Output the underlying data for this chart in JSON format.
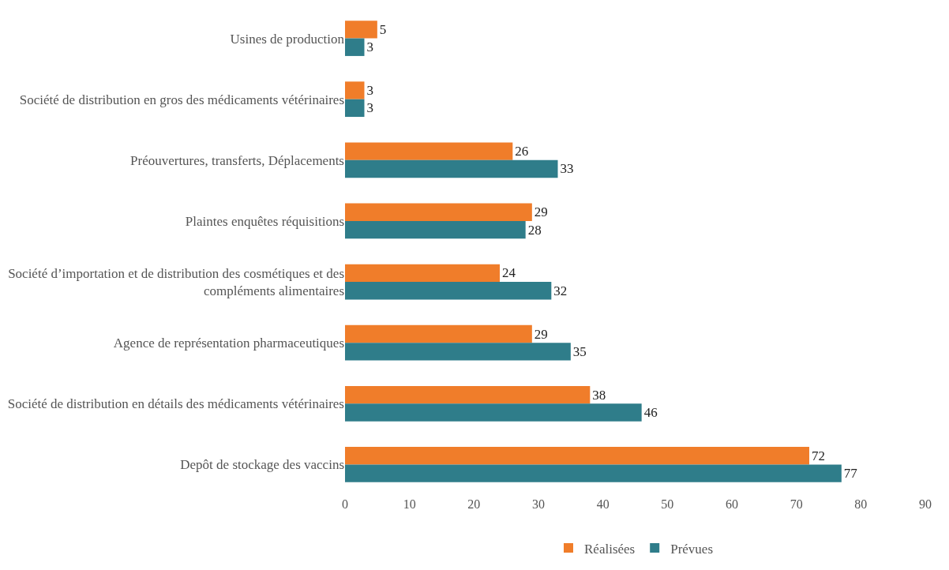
{
  "chart_data": {
    "type": "bar",
    "orientation": "horizontal",
    "categories": [
      "Usines de production",
      "Société de distribution en gros des médicaments vétérinaires",
      "Préouvertures, transferts, Déplacements",
      "Plaintes enquêtes réquisitions",
      "Société d’importation et de distribution des cosmétiques et des\ncompléments alimentaires",
      "Agence de représentation pharmaceutiques",
      "Société de distribution en détails des médicaments vétérinaires",
      "Depôt de stockage des vaccins"
    ],
    "series": [
      {
        "name": "Réalisées",
        "color": "#f07d2a",
        "values": [
          5,
          3,
          26,
          29,
          24,
          29,
          38,
          72
        ]
      },
      {
        "name": "Prévues",
        "color": "#2f7d8a",
        "values": [
          3,
          3,
          33,
          28,
          32,
          35,
          46,
          77
        ]
      }
    ],
    "xlim": [
      0,
      90
    ],
    "xticks": [
      0,
      10,
      20,
      30,
      40,
      50,
      60,
      70,
      80,
      90
    ],
    "data_labels": true,
    "legend": "bottom",
    "grid": false
  }
}
